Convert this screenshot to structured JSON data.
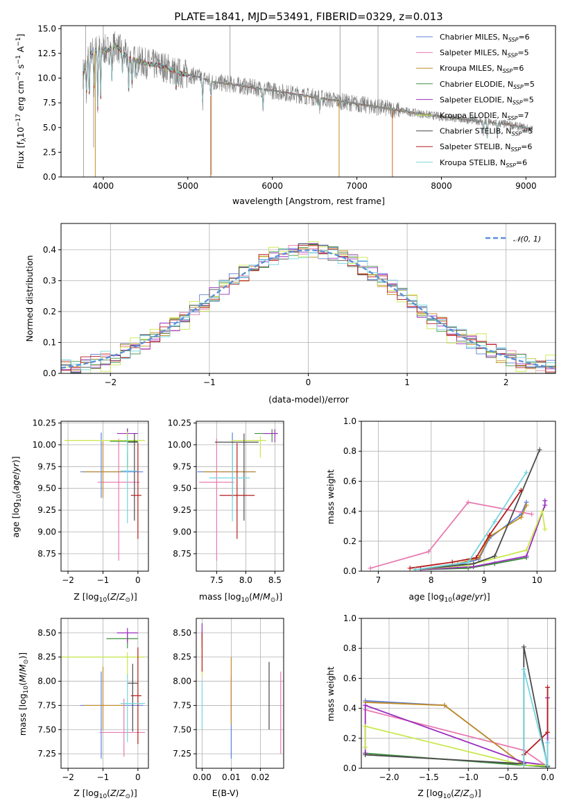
{
  "chart_data": [
    {
      "id": "spectrum",
      "type": "line",
      "title": "PLATE=1841, MJD=53491, FIBERID=0329, z=0.013",
      "xlabel": "wavelength [Angstrom, rest frame]",
      "ylabel": "Flux [f$_\\lambda$10$^{-17}$ erg cm$^{-2}$ s$^{-1}$ A$^{-1}$]",
      "ylabel_parts": {
        "a": "Flux [f",
        "b": "λ",
        "c": "10",
        "d": "−17",
        "e": " erg cm",
        "f": "−2",
        "g": " s",
        "h": "−1",
        "i": " A",
        "j": "−1",
        "k": "]"
      },
      "xlim": [
        3500,
        9350
      ],
      "ylim": [
        0,
        15.3
      ],
      "xticks": [
        4000,
        5000,
        6000,
        7000,
        8000,
        9000
      ],
      "yticks": [
        0.0,
        2.5,
        5.0,
        7.5,
        10.0,
        12.5,
        15.0
      ],
      "xtick_labels": [
        "4000",
        "5000",
        "6000",
        "7000",
        "8000",
        "9000"
      ],
      "ytick_labels": [
        "0.0",
        "2.5",
        "5.0",
        "7.5",
        "10.0",
        "12.5",
        "15.0"
      ],
      "legend_position": "top-right",
      "grid": false,
      "data_series": {
        "name": "data",
        "color": "#7f7f7f"
      },
      "continuum": {
        "x": [
          3760,
          3850,
          3950,
          4050,
          4150,
          4300,
          4500,
          4700,
          4900,
          5100,
          5300,
          5500,
          5800,
          6100,
          6400,
          6700,
          7000,
          7300,
          7600,
          7900,
          8200,
          8500,
          8800,
          9080
        ],
        "y": [
          10.5,
          12.5,
          13.0,
          12.8,
          13.3,
          12.0,
          11.5,
          11.2,
          10.5,
          10.2,
          9.6,
          9.4,
          9.0,
          8.6,
          8.2,
          7.8,
          7.4,
          7.0,
          6.6,
          6.2,
          5.9,
          5.6,
          5.3,
          4.8
        ]
      },
      "series": [
        {
          "name": "Chabrier MILES",
          "nssp": "6",
          "color": "#5b7fd8"
        },
        {
          "name": "Salpeter MILES",
          "nssp": "5",
          "color": "#e87bb0"
        },
        {
          "name": "Kroupa MILES",
          "nssp": "6",
          "color": "#c38a22"
        },
        {
          "name": "Chabrier ELODIE",
          "nssp": "5",
          "color": "#3d8f3d"
        },
        {
          "name": "Salpeter ELODIE",
          "nssp": "5",
          "color": "#9a2bbf"
        },
        {
          "name": "Kroupa ELODIE",
          "nssp": "7",
          "color": "#c8e84a"
        },
        {
          "name": "Chabrier STELIB",
          "nssp": "5",
          "color": "#4a4a4a"
        },
        {
          "name": "Salpeter STELIB",
          "nssp": "6",
          "color": "#b51a1a"
        },
        {
          "name": "Kroupa STELIB",
          "nssp": "6",
          "color": "#74d6de"
        }
      ]
    },
    {
      "id": "residuals",
      "type": "line",
      "xlabel": "(data-model)/error",
      "ylabel": "Normed distribution",
      "xlim": [
        -2.5,
        2.5
      ],
      "ylim": [
        0,
        0.485
      ],
      "xticks": [
        -2,
        -1,
        0,
        1,
        2
      ],
      "xtick_labels": [
        "−2",
        "−1",
        "0",
        "1",
        "2"
      ],
      "yticks": [
        0.0,
        0.1,
        0.2,
        0.3,
        0.4
      ],
      "ytick_labels": [
        "0.0",
        "0.1",
        "0.2",
        "0.3",
        "0.4"
      ],
      "grid": true,
      "legend_position": "top-right",
      "gaussian": {
        "name": "𝒩(0, 1)",
        "color": "#5b8fd8"
      },
      "bin_width": 0.1
    },
    {
      "id": "age-vs-Z",
      "type": "scatter",
      "xlabel": "Z [log10(Z/Z⊙)]",
      "ylabel": "age  [log10(age/yr)]",
      "xlim": [
        -2.2,
        0.3
      ],
      "ylim": [
        8.55,
        10.27
      ],
      "xticks": [
        -2,
        -1,
        0
      ],
      "xtick_labels": [
        "−2",
        "−1",
        "0"
      ],
      "yticks": [
        8.75,
        9.0,
        9.25,
        9.5,
        9.75,
        10.0,
        10.25
      ],
      "ytick_labels": [
        "8.75",
        "9.00",
        "9.25",
        "9.50",
        "9.75",
        "10.00",
        "10.25"
      ],
      "grid": true,
      "points": [
        {
          "s": 0,
          "x": -1.05,
          "y": 9.69,
          "xerr": [
            0.6,
            1.2
          ],
          "yerr": [
            0.3,
            0.45
          ]
        },
        {
          "s": 1,
          "x": -0.55,
          "y": 9.57,
          "xerr": [
            0.6,
            0.6
          ],
          "yerr": [
            0.9,
            0.5
          ]
        },
        {
          "s": 2,
          "x": -1.0,
          "y": 9.69,
          "xerr": [
            0.55,
            0.55
          ],
          "yerr": [
            0.3,
            0.35
          ]
        },
        {
          "s": 3,
          "x": -0.3,
          "y": 10.04,
          "xerr": [
            0.5,
            0.3
          ],
          "yerr": [
            0.3,
            0.15
          ]
        },
        {
          "s": 4,
          "x": -0.3,
          "y": 10.13,
          "xerr": [
            0.3,
            0.3
          ],
          "yerr": [
            0.1,
            0.05
          ]
        },
        {
          "s": 5,
          "x": -0.3,
          "y": 10.05,
          "xerr": [
            1.8,
            0.5
          ],
          "yerr": [
            0.15,
            0.1
          ]
        },
        {
          "s": 6,
          "x": -0.1,
          "y": 10.03,
          "xerr": [
            0.2,
            0.1
          ],
          "yerr": [
            0.9,
            0.1
          ]
        },
        {
          "s": 7,
          "x": 0.0,
          "y": 9.42,
          "xerr": [
            0.2,
            0.1
          ],
          "yerr": [
            0.5,
            0.6
          ]
        },
        {
          "s": 8,
          "x": -0.3,
          "y": 9.7,
          "xerr": [
            0.2,
            0.3
          ],
          "yerr": [
            0.6,
            0.4
          ]
        }
      ]
    },
    {
      "id": "age-vs-mass",
      "type": "scatter",
      "xlabel": "mass [log10(M/M⊙)]",
      "ylabel": "",
      "xlim": [
        7.15,
        8.65
      ],
      "ylim": [
        8.55,
        10.27
      ],
      "xticks": [
        7.5,
        8.0,
        8.5
      ],
      "xtick_labels": [
        "7.5",
        "8.0",
        "8.5"
      ],
      "yticks": [
        8.75,
        9.0,
        9.25,
        9.5,
        9.75,
        10.0,
        10.25
      ],
      "ytick_labels": [
        "8.75",
        "9.00",
        "9.25",
        "9.50",
        "9.75",
        "10.00",
        "10.25"
      ],
      "grid": true,
      "points": [
        {
          "s": 0,
          "x": 7.77,
          "y": 9.69,
          "xerr": [
            0.6,
            0.4
          ],
          "yerr": [
            0.3,
            0.45
          ]
        },
        {
          "s": 1,
          "x": 7.5,
          "y": 9.57,
          "xerr": [
            0.3,
            0.3
          ],
          "yerr": [
            0.9,
            0.5
          ]
        },
        {
          "s": 2,
          "x": 7.77,
          "y": 9.69,
          "xerr": [
            0.5,
            0.4
          ],
          "yerr": [
            0.3,
            0.35
          ]
        },
        {
          "s": 3,
          "x": 8.45,
          "y": 10.13,
          "xerr": [
            0.3,
            0.1
          ],
          "yerr": [
            0.1,
            0.05
          ]
        },
        {
          "s": 4,
          "x": 8.5,
          "y": 10.13,
          "xerr": [
            0.2,
            0.05
          ],
          "yerr": [
            0.1,
            0.05
          ]
        },
        {
          "s": 5,
          "x": 8.25,
          "y": 10.05,
          "xerr": [
            0.5,
            0.1
          ],
          "yerr": [
            0.2,
            0.05
          ]
        },
        {
          "s": 6,
          "x": 7.97,
          "y": 10.03,
          "xerr": [
            0.5,
            0.25
          ],
          "yerr": [
            0.9,
            0.1
          ]
        },
        {
          "s": 7,
          "x": 7.85,
          "y": 9.42,
          "xerr": [
            0.3,
            0.3
          ],
          "yerr": [
            0.5,
            0.6
          ]
        },
        {
          "s": 8,
          "x": 7.77,
          "y": 9.62,
          "xerr": [
            0.4,
            0.3
          ],
          "yerr": [
            0.5,
            0.4
          ]
        }
      ]
    },
    {
      "id": "massweight-vs-age",
      "type": "line",
      "xlabel": "age  [log10(age/yr)]",
      "ylabel": "mass weight",
      "xlim": [
        6.68,
        10.35
      ],
      "ylim": [
        0,
        1.0
      ],
      "xticks": [
        7,
        8,
        9,
        10
      ],
      "xtick_labels": [
        "7",
        "8",
        "9",
        "10"
      ],
      "yticks": [
        0.0,
        0.2,
        0.4,
        0.6,
        0.8,
        1.0
      ],
      "ytick_labels": [
        "0.0",
        "0.2",
        "0.4",
        "0.6",
        "0.8",
        "1.0"
      ],
      "grid": true,
      "lines": [
        {
          "s": 0,
          "x": [
            7.7,
            8.5,
            8.9,
            9.1,
            9.7,
            9.8
          ],
          "y": [
            0.01,
            0.04,
            0.08,
            0.22,
            0.38,
            0.46
          ]
        },
        {
          "s": 1,
          "x": 6.85,
          "y": 0.02,
          "xs": [
            6.85,
            7.95,
            8.7,
            9.9
          ],
          "ys": [
            0.02,
            0.13,
            0.46,
            0.38
          ]
        },
        {
          "s": 2,
          "x": [
            7.7,
            8.5,
            8.9,
            9.1,
            9.7,
            9.8
          ],
          "y": [
            0.01,
            0.05,
            0.09,
            0.23,
            0.36,
            0.44
          ]
        },
        {
          "s": 3,
          "x": [
            7.8,
            8.7,
            9.2,
            9.8
          ],
          "y": [
            0.01,
            0.02,
            0.05,
            0.09
          ]
        },
        {
          "s": 4,
          "x": [
            7.8,
            8.8,
            9.8,
            10.15,
            10.15
          ],
          "y": [
            0.01,
            0.03,
            0.1,
            0.44,
            0.47
          ]
        },
        {
          "s": 5,
          "x": [
            7.7,
            8.7,
            9.8,
            10.1,
            10.15
          ],
          "y": [
            0.01,
            0.04,
            0.14,
            0.4,
            0.28
          ]
        },
        {
          "s": 6,
          "x": [
            7.7,
            8.8,
            9.2,
            10.05
          ],
          "y": [
            0.01,
            0.05,
            0.1,
            0.81
          ]
        },
        {
          "s": 7,
          "x": [
            7.6,
            8.4,
            8.85,
            9.1,
            9.7
          ],
          "y": [
            0.02,
            0.06,
            0.09,
            0.24,
            0.54
          ]
        },
        {
          "s": 8,
          "x": [
            7.7,
            8.7,
            9.2,
            9.8
          ],
          "y": [
            0.01,
            0.06,
            0.33,
            0.66
          ]
        }
      ]
    },
    {
      "id": "mass-vs-Z",
      "type": "scatter",
      "xlabel": "Z [log10(Z/Z⊙)]",
      "ylabel": "mass [log10(M/M⊙)]",
      "xlim": [
        -2.2,
        0.3
      ],
      "ylim": [
        7.1,
        8.65
      ],
      "xticks": [
        -2,
        -1,
        0
      ],
      "xtick_labels": [
        "−2",
        "−1",
        "0"
      ],
      "yticks": [
        7.25,
        7.5,
        7.75,
        8.0,
        8.25,
        8.5
      ],
      "ytick_labels": [
        "7.25",
        "7.50",
        "7.75",
        "8.00",
        "8.25",
        "8.50"
      ],
      "grid": true,
      "points": [
        {
          "s": 0,
          "x": -1.05,
          "y": 7.75,
          "xerr": [
            0.6,
            1.2
          ],
          "yerr": [
            0.55,
            0.35
          ]
        },
        {
          "s": 1,
          "x": -0.4,
          "y": 7.47,
          "xerr": [
            0.7,
            0.6
          ],
          "yerr": [
            0.25,
            0.35
          ]
        },
        {
          "s": 2,
          "x": -1.0,
          "y": 7.75,
          "xerr": [
            0.55,
            0.6
          ],
          "yerr": [
            0.25,
            0.4
          ]
        },
        {
          "s": 3,
          "x": -0.3,
          "y": 8.44,
          "xerr": [
            0.6,
            0.3
          ],
          "yerr": [
            0.1,
            0.05
          ]
        },
        {
          "s": 4,
          "x": -0.3,
          "y": 8.5,
          "xerr": [
            0.3,
            0.3
          ],
          "yerr": [
            0.1,
            0.05
          ]
        },
        {
          "s": 5,
          "x": -0.3,
          "y": 8.25,
          "xerr": [
            1.9,
            0.5
          ],
          "yerr": [
            0.2,
            0.05
          ]
        },
        {
          "s": 6,
          "x": -0.15,
          "y": 7.98,
          "xerr": [
            0.15,
            0.15
          ],
          "yerr": [
            0.5,
            0.2
          ]
        },
        {
          "s": 7,
          "x": 0.0,
          "y": 7.85,
          "xerr": [
            0.2,
            0.1
          ],
          "yerr": [
            0.5,
            0.5
          ]
        },
        {
          "s": 8,
          "x": -0.3,
          "y": 7.77,
          "xerr": [
            0.2,
            0.5
          ],
          "yerr": [
            0.4,
            0.3
          ]
        }
      ]
    },
    {
      "id": "mass-vs-EBV",
      "type": "scatter",
      "xlabel": "E(B-V)",
      "ylabel": "",
      "xlim": [
        -0.002,
        0.028
      ],
      "ylim": [
        7.1,
        8.65
      ],
      "xticks": [
        0.0,
        0.01,
        0.02
      ],
      "xtick_labels": [
        "0.00",
        "0.01",
        "0.02"
      ],
      "yticks": [
        7.25,
        7.5,
        7.75,
        8.0,
        8.25,
        8.5
      ],
      "ytick_labels": [
        "7.25",
        "7.50",
        "7.75",
        "8.00",
        "8.25",
        "8.50"
      ],
      "grid": true,
      "points": [
        {
          "s": 0,
          "x": 0.01,
          "y": 7.75,
          "yerr": [
            0.55,
            0.3
          ]
        },
        {
          "s": 1,
          "x": 0.027,
          "y": 7.65,
          "yerr": [
            0.4,
            0.45
          ]
        },
        {
          "s": 2,
          "x": 0.01,
          "y": 7.75,
          "yerr": [
            0.2,
            0.5
          ]
        },
        {
          "s": 3,
          "x": 0.0,
          "y": 8.44,
          "yerr": [
            0.1,
            0.1
          ]
        },
        {
          "s": 4,
          "x": 0.0,
          "y": 8.5,
          "yerr": [
            0.1,
            0.1
          ]
        },
        {
          "s": 5,
          "x": 0.0,
          "y": 8.25,
          "yerr": [
            0.2,
            0.2
          ]
        },
        {
          "s": 6,
          "x": 0.023,
          "y": 7.85,
          "yerr": [
            0.35,
            0.35
          ]
        },
        {
          "s": 7,
          "x": 0.0,
          "y": 8.3,
          "yerr": [
            0.2,
            0.2
          ]
        },
        {
          "s": 8,
          "x": 0.0,
          "y": 7.7,
          "yerr": [
            0.2,
            0.3
          ]
        }
      ]
    },
    {
      "id": "massweight-vs-Z",
      "type": "line",
      "xlabel": "Z [log10(Z/Z⊙)]",
      "ylabel": "mass weight",
      "xlim": [
        -2.35,
        0.1
      ],
      "ylim": [
        0,
        1.0
      ],
      "xticks": [
        -2.0,
        -1.5,
        -1.0,
        -0.5,
        0.0
      ],
      "xtick_labels": [
        "−2.0",
        "−1.5",
        "−1.0",
        "−0.5",
        "0.0"
      ],
      "yticks": [
        0.0,
        0.2,
        0.4,
        0.6,
        0.8,
        1.0
      ],
      "ytick_labels": [
        "0.0",
        "0.2",
        "0.4",
        "0.6",
        "0.8",
        "1.0"
      ],
      "grid": true,
      "lines": [
        {
          "s": 0,
          "x": [
            -2.3,
            -1.3,
            -0.3,
            0.0
          ],
          "y": [
            0.45,
            0.42,
            0.02,
            0.01
          ]
        },
        {
          "s": 1,
          "x": [
            -2.3,
            -0.3,
            0.0
          ],
          "y": [
            0.39,
            0.12,
            0.01
          ]
        },
        {
          "s": 2,
          "x": [
            -2.3,
            -1.3,
            -0.3,
            0.0
          ],
          "y": [
            0.44,
            0.42,
            0.02,
            0.01
          ]
        },
        {
          "s": 3,
          "x": [
            -2.3,
            -0.3,
            0.0
          ],
          "y": [
            0.1,
            0.02,
            0.01
          ]
        },
        {
          "s": 4,
          "x": [
            -2.3,
            -2.3,
            -0.3,
            0.0,
            0.0
          ],
          "y": [
            0.1,
            0.42,
            0.04,
            0.02,
            0.47
          ]
        },
        {
          "s": 5,
          "x": [
            -2.3,
            -2.3,
            -0.3,
            0.0
          ],
          "y": [
            0.14,
            0.28,
            0.02,
            0.02
          ]
        },
        {
          "s": 6,
          "x": [
            -2.3,
            -0.3,
            -0.3,
            0.0
          ],
          "y": [
            0.09,
            0.03,
            0.81,
            0.01
          ]
        },
        {
          "s": 7,
          "x": [
            -0.3,
            0.0,
            0.0
          ],
          "y": [
            0.09,
            0.24,
            0.54
          ]
        },
        {
          "s": 8,
          "x": [
            -0.3,
            -0.3,
            0.0,
            0.0
          ],
          "y": [
            0.02,
            0.66,
            0.02,
            0.17
          ]
        }
      ]
    }
  ],
  "legend": {
    "nssp_label": "N",
    "nssp_sub": "SSP",
    "gaussian_label": "𝒩(0, 1)"
  }
}
